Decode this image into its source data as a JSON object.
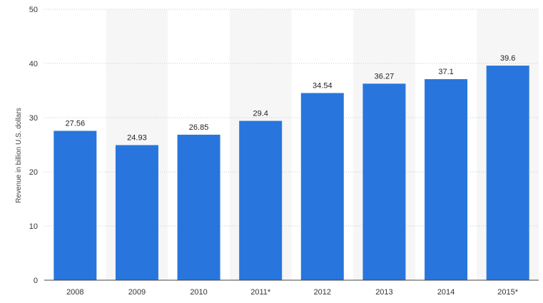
{
  "chart_data": {
    "type": "bar",
    "categories": [
      "2008",
      "2009",
      "2010",
      "2011*",
      "2012",
      "2013",
      "2014",
      "2015*"
    ],
    "values": [
      27.56,
      24.93,
      26.85,
      29.4,
      34.54,
      36.27,
      37.1,
      39.6
    ],
    "value_labels": [
      "27.56",
      "24.93",
      "26.85",
      "29.4",
      "34.54",
      "36.27",
      "37.1",
      "39.6"
    ],
    "title": "",
    "xlabel": "",
    "ylabel": "Revenue in billion U.S. dollars",
    "ylim": [
      0,
      50
    ],
    "yticks": [
      0,
      10,
      20,
      30,
      40,
      50
    ],
    "grid": true,
    "alternating_column_shading": true,
    "legend": "none",
    "colors": {
      "bar": "#2876dd",
      "shade": "#f6f6f6",
      "grid": "#c9c9c9",
      "axis": "#444444"
    }
  }
}
